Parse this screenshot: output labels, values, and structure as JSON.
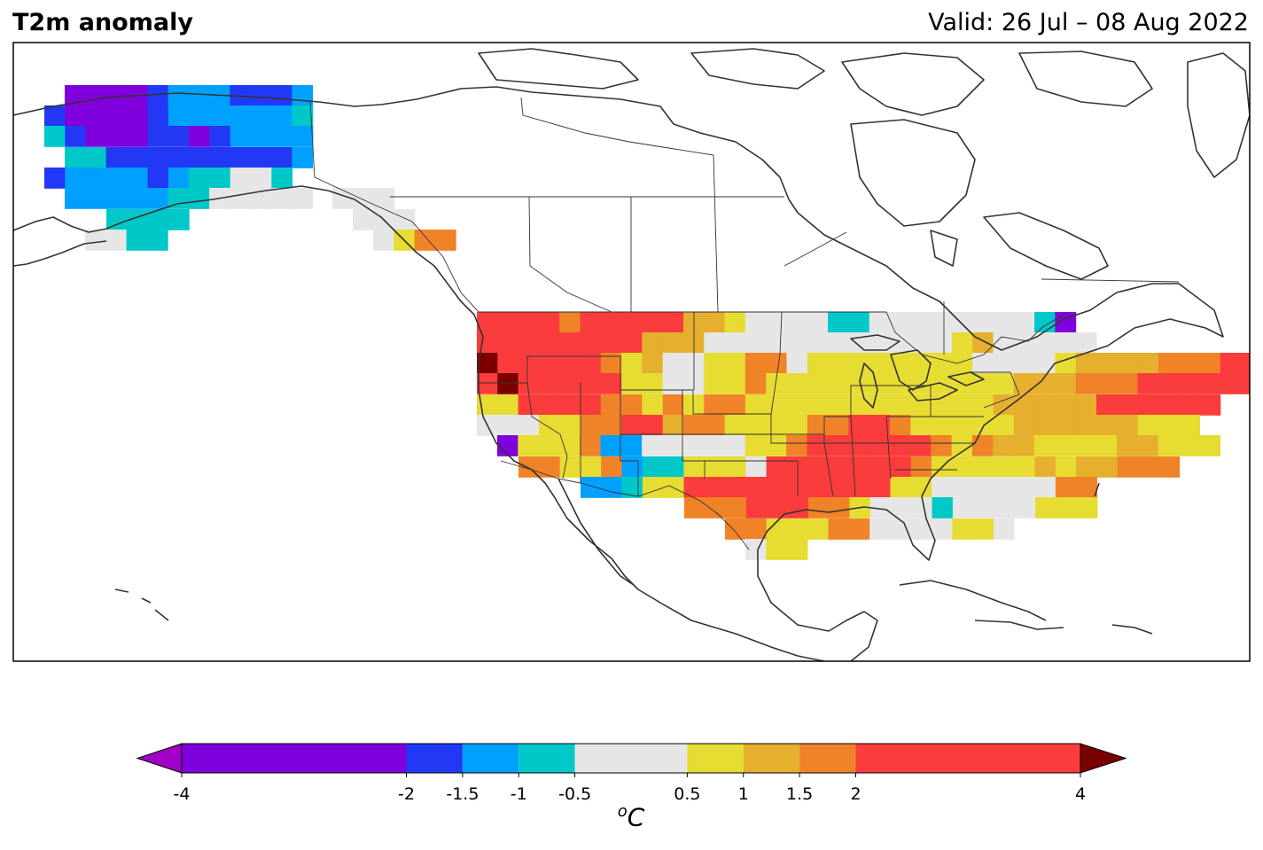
{
  "title": "T2m anomaly",
  "valid_label": "Valid: 26 Jul – 08 Aug 2022",
  "colorbar": {
    "unit_base": "C",
    "unit_sup": "o",
    "ticks": [
      "-4",
      "-2",
      "-1.5",
      "-1",
      "-0.5",
      "0.5",
      "1",
      "1.5",
      "2",
      "4"
    ],
    "levels": [
      -4,
      -2,
      -1.5,
      -1,
      -0.5,
      0.5,
      1,
      1.5,
      2,
      4
    ],
    "colors": [
      "#7f00dc",
      "#2238f5",
      "#00a0ff",
      "#00c8c8",
      "#e6e6e6",
      "#e6dc32",
      "#e6af2d",
      "#f08228",
      "#fa3c3c"
    ],
    "under_color": "#a000c8",
    "over_color": "#7a0000"
  },
  "legend_colors": {
    "v": "#7f00dc",
    "b": "#2238f5",
    "c": "#00a0ff",
    "t": "#00c8c8",
    "g": "#e6e6e6",
    "y": "#e6dc32",
    "o": "#e6af2d",
    "O": "#f08228",
    "r": "#fa3c3c",
    "d": "#7a0000"
  }
}
